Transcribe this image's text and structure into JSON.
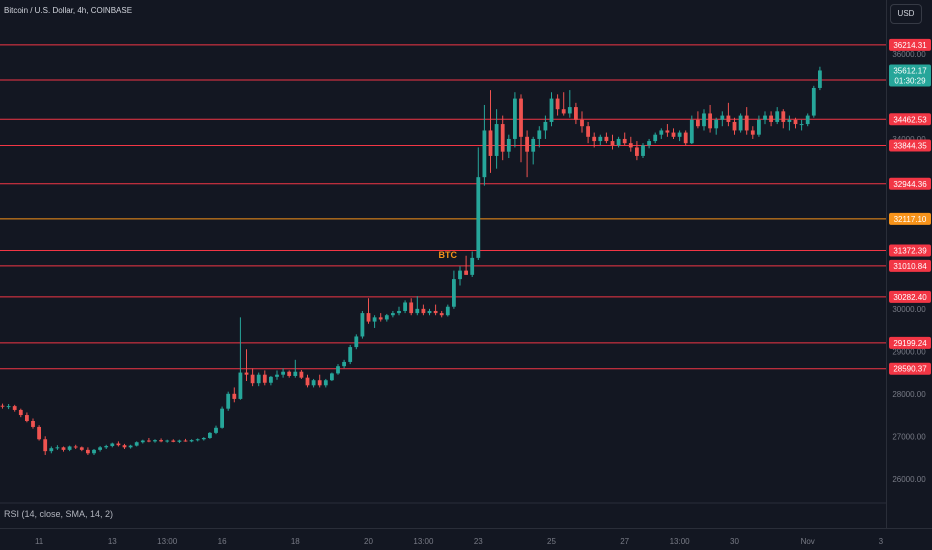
{
  "header": {
    "title": "Bitcoin / U.S. Dollar, 4h, COINBASE",
    "currency_button": "USD"
  },
  "indicator": {
    "rsi_label": "RSI (14, close, SMA, 14, 2)"
  },
  "colors": {
    "background": "#131722",
    "up": "#26a69a",
    "down": "#ef5350",
    "level_line": "#f23645",
    "highlight": "#f7931a",
    "axis_text": "#787b86"
  },
  "chart_data": {
    "type": "candlestick",
    "title": "Bitcoin / U.S. Dollar, 4h, COINBASE",
    "ylim": [
      25500,
      36800
    ],
    "y_ticks": [
      {
        "value": 26000,
        "label": "26000.00"
      },
      {
        "value": 27000,
        "label": "27000.00"
      },
      {
        "value": 28000,
        "label": "28000.00"
      },
      {
        "value": 29000,
        "label": "29000.00"
      },
      {
        "value": 30000,
        "label": "30000.00"
      },
      {
        "value": 34000,
        "label": "34000.00"
      },
      {
        "value": 36000,
        "label": "36000.00"
      }
    ],
    "x_ticks": [
      {
        "label": "11",
        "bar": 6
      },
      {
        "label": "13",
        "bar": 18
      },
      {
        "label": "13:00",
        "bar": 27
      },
      {
        "label": "16",
        "bar": 36
      },
      {
        "label": "18",
        "bar": 48
      },
      {
        "label": "20",
        "bar": 60
      },
      {
        "label": "13:00",
        "bar": 69
      },
      {
        "label": "23",
        "bar": 78
      },
      {
        "label": "25",
        "bar": 90
      },
      {
        "label": "27",
        "bar": 102
      },
      {
        "label": "13:00",
        "bar": 111
      },
      {
        "label": "30",
        "bar": 120
      },
      {
        "label": "Nov",
        "bar": 132
      },
      {
        "label": "3",
        "bar": 144
      }
    ],
    "levels": [
      {
        "value": 36214.31,
        "label": "36214.31",
        "color": "#f23645"
      },
      {
        "value": 35387.68,
        "label": "35387.68",
        "color": "#f23645"
      },
      {
        "value": 34462.53,
        "label": "34462.53",
        "color": "#f23645"
      },
      {
        "value": 33844.35,
        "label": "33844.35",
        "color": "#f23645"
      },
      {
        "value": 32944.36,
        "label": "32944.36",
        "color": "#f23645"
      },
      {
        "value": 32117.1,
        "label": "32117.10",
        "color": "#f7931a"
      },
      {
        "value": 31372.39,
        "label": "31372.39",
        "color": "#f23645"
      },
      {
        "value": 31010.84,
        "label": "31010.84",
        "color": "#f23645"
      },
      {
        "value": 30282.4,
        "label": "30282.40",
        "color": "#f23645"
      },
      {
        "value": 29199.24,
        "label": "29199.24",
        "color": "#f23645"
      },
      {
        "value": 28590.37,
        "label": "28590.37",
        "color": "#f23645"
      }
    ],
    "annotation": {
      "text": "BTC",
      "value": 31200,
      "bar": 73
    },
    "last_price": {
      "value": 35612.17,
      "label": "35612.17",
      "countdown": "01:30:29"
    },
    "candles": [
      [
        27720,
        27770,
        27650,
        27700
      ],
      [
        27700,
        27760,
        27640,
        27710
      ],
      [
        27710,
        27740,
        27580,
        27620
      ],
      [
        27620,
        27650,
        27450,
        27500
      ],
      [
        27500,
        27560,
        27330,
        27360
      ],
      [
        27360,
        27420,
        27180,
        27220
      ],
      [
        27220,
        27260,
        26900,
        26930
      ],
      [
        26930,
        27000,
        26560,
        26650
      ],
      [
        26650,
        26760,
        26600,
        26720
      ],
      [
        26720,
        26790,
        26680,
        26740
      ],
      [
        26740,
        26760,
        26640,
        26680
      ],
      [
        26680,
        26780,
        26650,
        26760
      ],
      [
        26760,
        26800,
        26700,
        26740
      ],
      [
        26740,
        26760,
        26650,
        26680
      ],
      [
        26680,
        26740,
        26560,
        26600
      ],
      [
        26600,
        26700,
        26560,
        26680
      ],
      [
        26680,
        26770,
        26640,
        26740
      ],
      [
        26740,
        26800,
        26700,
        26770
      ],
      [
        26770,
        26850,
        26740,
        26830
      ],
      [
        26830,
        26880,
        26760,
        26790
      ],
      [
        26790,
        26820,
        26700,
        26740
      ],
      [
        26740,
        26800,
        26710,
        26780
      ],
      [
        26780,
        26880,
        26760,
        26860
      ],
      [
        26860,
        26920,
        26830,
        26900
      ],
      [
        26900,
        26960,
        26860,
        26880
      ],
      [
        26880,
        26930,
        26850,
        26910
      ],
      [
        26910,
        26950,
        26860,
        26880
      ],
      [
        26880,
        26920,
        26850,
        26900
      ],
      [
        26900,
        26930,
        26860,
        26870
      ],
      [
        26870,
        26920,
        26840,
        26900
      ],
      [
        26900,
        26940,
        26870,
        26880
      ],
      [
        26880,
        26930,
        26860,
        26910
      ],
      [
        26910,
        26950,
        26880,
        26930
      ],
      [
        26930,
        26980,
        26900,
        26960
      ],
      [
        26960,
        27100,
        26940,
        27080
      ],
      [
        27080,
        27250,
        27050,
        27200
      ],
      [
        27200,
        27700,
        27180,
        27650
      ],
      [
        27650,
        28050,
        27600,
        28000
      ],
      [
        28000,
        28150,
        27800,
        27880
      ],
      [
        27880,
        29800,
        27860,
        28500
      ],
      [
        28500,
        29050,
        28300,
        28450
      ],
      [
        28450,
        28600,
        28180,
        28250
      ],
      [
        28250,
        28500,
        28180,
        28450
      ],
      [
        28450,
        28550,
        28200,
        28260
      ],
      [
        28260,
        28420,
        28200,
        28400
      ],
      [
        28400,
        28550,
        28330,
        28450
      ],
      [
        28450,
        28600,
        28380,
        28520
      ],
      [
        28520,
        28550,
        28380,
        28420
      ],
      [
        28420,
        28800,
        28380,
        28520
      ],
      [
        28520,
        28560,
        28350,
        28380
      ],
      [
        28380,
        28450,
        28150,
        28200
      ],
      [
        28200,
        28350,
        28150,
        28320
      ],
      [
        28320,
        28450,
        28150,
        28200
      ],
      [
        28200,
        28350,
        28150,
        28320
      ],
      [
        28320,
        28500,
        28300,
        28480
      ],
      [
        28480,
        28700,
        28450,
        28650
      ],
      [
        28650,
        28800,
        28600,
        28750
      ],
      [
        28750,
        29150,
        28700,
        29100
      ],
      [
        29100,
        29400,
        29050,
        29350
      ],
      [
        29350,
        29950,
        29300,
        29900
      ],
      [
        29900,
        30250,
        29650,
        29700
      ],
      [
        29700,
        29850,
        29550,
        29800
      ],
      [
        29800,
        29900,
        29700,
        29750
      ],
      [
        29750,
        29880,
        29700,
        29850
      ],
      [
        29850,
        29950,
        29800,
        29900
      ],
      [
        29900,
        30050,
        29850,
        29950
      ],
      [
        29950,
        30200,
        29900,
        30150
      ],
      [
        30150,
        30250,
        29850,
        29900
      ],
      [
        29900,
        30300,
        29850,
        30000
      ],
      [
        30000,
        30100,
        29850,
        29900
      ],
      [
        29900,
        30000,
        29850,
        29950
      ],
      [
        29950,
        30100,
        29850,
        29900
      ],
      [
        29900,
        29950,
        29800,
        29850
      ],
      [
        29850,
        30100,
        29820,
        30050
      ],
      [
        30050,
        30900,
        30000,
        30700
      ],
      [
        30700,
        31000,
        30550,
        30900
      ],
      [
        30900,
        31250,
        30800,
        30800
      ],
      [
        30800,
        31350,
        30750,
        31200
      ],
      [
        31200,
        33800,
        31150,
        33100
      ],
      [
        33100,
        34800,
        32900,
        34200
      ],
      [
        34200,
        35150,
        33200,
        33600
      ],
      [
        33600,
        34700,
        33300,
        34350
      ],
      [
        34350,
        34550,
        33500,
        33700
      ],
      [
        33700,
        34100,
        33550,
        34000
      ],
      [
        34000,
        35100,
        33800,
        34950
      ],
      [
        34950,
        35050,
        33450,
        34050
      ],
      [
        34050,
        34200,
        33100,
        33700
      ],
      [
        33700,
        34050,
        33400,
        34000
      ],
      [
        34000,
        34300,
        33800,
        34200
      ],
      [
        34200,
        34550,
        34000,
        34400
      ],
      [
        34400,
        35100,
        34300,
        34950
      ],
      [
        34950,
        35050,
        34550,
        34700
      ],
      [
        34700,
        35100,
        34550,
        34600
      ],
      [
        34600,
        35150,
        34500,
        34750
      ],
      [
        34750,
        34850,
        34350,
        34450
      ],
      [
        34450,
        34650,
        34150,
        34300
      ],
      [
        34300,
        34400,
        33900,
        34050
      ],
      [
        34050,
        34150,
        33800,
        33950
      ],
      [
        33950,
        34100,
        33850,
        34050
      ],
      [
        34050,
        34150,
        33900,
        33950
      ],
      [
        33950,
        34100,
        33750,
        33850
      ],
      [
        33850,
        34050,
        33800,
        34000
      ],
      [
        34000,
        34150,
        33850,
        33900
      ],
      [
        33900,
        34050,
        33700,
        33800
      ],
      [
        33800,
        33950,
        33500,
        33600
      ],
      [
        33600,
        33900,
        33550,
        33850
      ],
      [
        33850,
        34000,
        33780,
        33950
      ],
      [
        33950,
        34150,
        33900,
        34100
      ],
      [
        34100,
        34250,
        34000,
        34200
      ],
      [
        34200,
        34350,
        34050,
        34150
      ],
      [
        34150,
        34250,
        34000,
        34050
      ],
      [
        34050,
        34200,
        33950,
        34150
      ],
      [
        34150,
        34200,
        33850,
        33900
      ],
      [
        33900,
        34550,
        33880,
        34450
      ],
      [
        34450,
        34650,
        34250,
        34300
      ],
      [
        34300,
        34700,
        34200,
        34600
      ],
      [
        34600,
        34800,
        34150,
        34250
      ],
      [
        34250,
        34500,
        34100,
        34450
      ],
      [
        34450,
        34650,
        34300,
        34550
      ],
      [
        34550,
        34850,
        34300,
        34400
      ],
      [
        34400,
        34500,
        34100,
        34200
      ],
      [
        34200,
        34600,
        34150,
        34550
      ],
      [
        34550,
        34750,
        34100,
        34200
      ],
      [
        34200,
        34300,
        34000,
        34100
      ],
      [
        34100,
        34550,
        34050,
        34450
      ],
      [
        34450,
        34650,
        34350,
        34550
      ],
      [
        34550,
        34650,
        34300,
        34400
      ],
      [
        34400,
        34750,
        34350,
        34650
      ],
      [
        34650,
        34700,
        34250,
        34400
      ],
      [
        34400,
        34550,
        34200,
        34450
      ],
      [
        34450,
        34500,
        34250,
        34350
      ],
      [
        34350,
        34450,
        34200,
        34350
      ],
      [
        34350,
        34600,
        34300,
        34550
      ],
      [
        34550,
        35250,
        34500,
        35200
      ],
      [
        35200,
        35700,
        35150,
        35612
      ]
    ]
  }
}
